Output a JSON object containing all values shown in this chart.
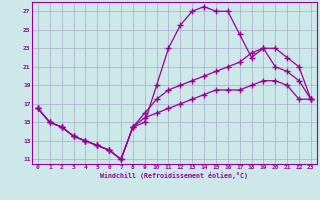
{
  "xlabel": "Windchill (Refroidissement éolien,°C)",
  "bg_color": "#cce8e8",
  "line_color": "#990099",
  "grid_color": "#aaaacc",
  "xlim": [
    -0.5,
    23.5
  ],
  "ylim": [
    10.5,
    28.0
  ],
  "xticks": [
    0,
    1,
    2,
    3,
    4,
    5,
    6,
    7,
    8,
    9,
    10,
    11,
    12,
    13,
    14,
    15,
    16,
    17,
    18,
    19,
    20,
    21,
    22,
    23
  ],
  "yticks": [
    11,
    13,
    15,
    17,
    19,
    21,
    23,
    25,
    27
  ],
  "curve1_x": [
    0,
    1,
    2,
    3,
    4,
    5,
    6,
    7,
    8,
    9,
    10,
    11,
    12,
    13,
    14,
    15,
    16,
    17,
    18,
    19,
    20,
    21,
    22,
    23
  ],
  "curve1_y": [
    16.5,
    15.0,
    14.5,
    13.5,
    13.0,
    12.5,
    12.0,
    11.0,
    14.5,
    15.0,
    19.0,
    23.0,
    25.5,
    27.0,
    27.5,
    27.0,
    27.0,
    24.5,
    22.0,
    23.0,
    21.0,
    20.5,
    19.5,
    17.5
  ],
  "curve2_x": [
    0,
    1,
    2,
    3,
    4,
    5,
    6,
    7,
    8,
    9,
    10,
    11,
    12,
    13,
    14,
    15,
    16,
    17,
    18,
    19,
    20,
    21,
    22,
    23
  ],
  "curve2_y": [
    16.5,
    15.0,
    14.5,
    13.5,
    13.0,
    12.5,
    12.0,
    11.0,
    14.5,
    16.0,
    17.5,
    18.5,
    19.0,
    19.5,
    20.0,
    20.5,
    21.0,
    21.5,
    22.5,
    23.0,
    23.0,
    22.0,
    21.0,
    17.5
  ],
  "curve3_x": [
    0,
    1,
    2,
    3,
    4,
    5,
    6,
    7,
    8,
    9,
    10,
    11,
    12,
    13,
    14,
    15,
    16,
    17,
    18,
    19,
    20,
    21,
    22,
    23
  ],
  "curve3_y": [
    16.5,
    15.0,
    14.5,
    13.5,
    13.0,
    12.5,
    12.0,
    11.0,
    14.5,
    15.5,
    16.0,
    16.5,
    17.0,
    17.5,
    18.0,
    18.5,
    18.5,
    18.5,
    19.0,
    19.5,
    19.5,
    19.0,
    17.5,
    17.5
  ]
}
